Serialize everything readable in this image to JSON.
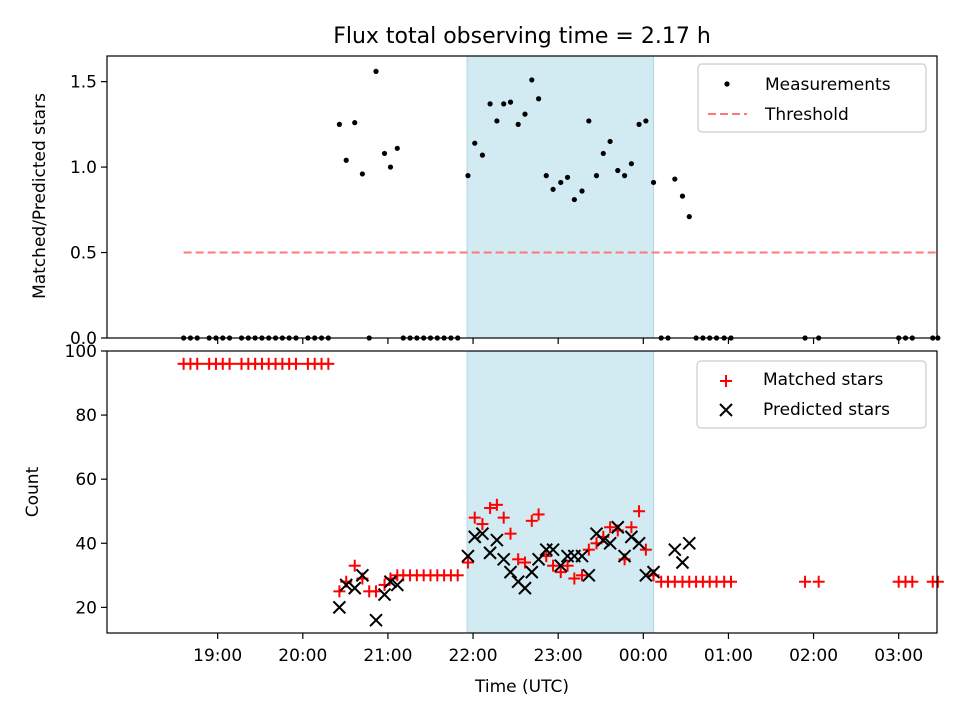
{
  "chart_data": {
    "title": "Flux total observing time = 2.17 h",
    "xlabel": "Time (UTC)",
    "x_tick_labels": [
      "19:00",
      "20:00",
      "21:00",
      "22:00",
      "23:00",
      "00:00",
      "01:00",
      "02:00",
      "03:00"
    ],
    "x_tick_hours": [
      19,
      20,
      21,
      22,
      23,
      24,
      25,
      26,
      27
    ],
    "x_range_hours": [
      17.7,
      27.45
    ],
    "highlight_span_hours": [
      21.93,
      24.12
    ],
    "highlight_color": "#add8e6",
    "panels": [
      {
        "id": "ratio",
        "type": "scatter",
        "ylabel": "Matched/Predicted stars",
        "ylim": [
          0,
          1.65
        ],
        "y_ticks": [
          0.0,
          0.5,
          1.0,
          1.5
        ],
        "y_tick_labels": [
          "0.0",
          "0.5",
          "1.0",
          "1.5"
        ],
        "legend": {
          "position": "top-right",
          "entries": [
            "Measurements",
            "Threshold"
          ]
        },
        "threshold": {
          "name": "Threshold",
          "value": 0.5,
          "x_from": 18.6,
          "x_to": 27.45,
          "color": "#ff7777",
          "style": "dashed"
        },
        "series": [
          {
            "name": "Measurements",
            "color": "#000000",
            "x": [
              18.6,
              18.68,
              18.76,
              18.9,
              18.98,
              19.06,
              19.14,
              19.28,
              19.36,
              19.44,
              19.52,
              19.6,
              19.68,
              19.76,
              19.84,
              19.92,
              20.06,
              20.14,
              20.22,
              20.3,
              20.43,
              20.51,
              20.61,
              20.7,
              20.78,
              20.86,
              20.96,
              21.03,
              21.11,
              21.18,
              21.26,
              21.34,
              21.42,
              21.5,
              21.58,
              21.66,
              21.74,
              21.82,
              21.94,
              22.02,
              22.11,
              22.2,
              22.28,
              22.36,
              22.44,
              22.53,
              22.61,
              22.69,
              22.77,
              22.86,
              22.94,
              23.03,
              23.11,
              23.19,
              23.28,
              23.36,
              23.45,
              23.53,
              23.61,
              23.7,
              23.78,
              23.86,
              23.95,
              24.03,
              24.12,
              24.21,
              24.29,
              24.37,
              24.46,
              24.54,
              24.62,
              24.7,
              24.78,
              24.86,
              24.95,
              25.03,
              25.9,
              26.06,
              27.0,
              27.08,
              27.16,
              27.4,
              27.46
            ],
            "y": [
              0,
              0,
              0,
              0,
              0,
              0,
              0,
              0,
              0,
              0,
              0,
              0,
              0,
              0,
              0,
              0,
              0,
              0,
              0,
              0,
              1.25,
              1.04,
              1.26,
              0.96,
              0,
              1.56,
              1.08,
              1.0,
              1.11,
              0,
              0,
              0,
              0,
              0,
              0,
              0,
              0,
              0,
              0.95,
              1.14,
              1.07,
              1.37,
              1.27,
              1.37,
              1.38,
              1.25,
              1.31,
              1.51,
              1.4,
              0.95,
              0.87,
              0.91,
              0.94,
              0.81,
              0.86,
              1.27,
              0.95,
              1.08,
              1.15,
              0.98,
              0.95,
              1.02,
              1.25,
              1.27,
              0.91,
              0,
              0,
              0.93,
              0.83,
              0.71,
              0,
              0,
              0,
              0,
              0,
              0,
              0,
              0,
              0,
              0,
              0,
              0,
              0
            ]
          }
        ]
      },
      {
        "id": "counts",
        "type": "scatter",
        "ylabel": "Count",
        "ylim": [
          12,
          100
        ],
        "y_ticks": [
          20,
          40,
          60,
          80,
          100
        ],
        "y_tick_labels": [
          "20",
          "40",
          "60",
          "80",
          "100"
        ],
        "legend": {
          "position": "top-right",
          "entries": [
            "Matched stars",
            "Predicted stars"
          ]
        },
        "series": [
          {
            "name": "Matched stars",
            "marker": "plus",
            "color": "#ff0000",
            "x": [
              18.6,
              18.68,
              18.76,
              18.9,
              18.98,
              19.06,
              19.14,
              19.28,
              19.36,
              19.44,
              19.52,
              19.6,
              19.68,
              19.76,
              19.84,
              19.92,
              20.06,
              20.14,
              20.22,
              20.3,
              20.43,
              20.51,
              20.61,
              20.7,
              20.78,
              20.86,
              20.96,
              21.03,
              21.11,
              21.18,
              21.26,
              21.34,
              21.42,
              21.5,
              21.58,
              21.66,
              21.74,
              21.82,
              21.94,
              22.02,
              22.11,
              22.2,
              22.28,
              22.36,
              22.44,
              22.53,
              22.61,
              22.69,
              22.77,
              22.86,
              22.94,
              23.03,
              23.11,
              23.19,
              23.28,
              23.36,
              23.45,
              23.53,
              23.61,
              23.7,
              23.78,
              23.86,
              23.95,
              24.03,
              24.12,
              24.21,
              24.29,
              24.37,
              24.46,
              24.54,
              24.62,
              24.7,
              24.78,
              24.86,
              24.95,
              25.03,
              25.9,
              26.06,
              27.0,
              27.08,
              27.16,
              27.4,
              27.46
            ],
            "y": [
              96,
              96,
              96,
              96,
              96,
              96,
              96,
              96,
              96,
              96,
              96,
              96,
              96,
              96,
              96,
              96,
              96,
              96,
              96,
              96,
              25,
              28,
              33,
              29,
              25,
              25,
              27,
              29,
              30,
              30,
              30,
              30,
              30,
              30,
              30,
              30,
              30,
              30,
              34,
              48,
              46,
              51,
              52,
              48,
              43,
              35,
              34,
              47,
              49,
              36,
              33,
              31,
              33,
              29,
              30,
              38,
              40,
              42,
              45,
              44,
              35,
              45,
              50,
              38,
              30,
              28,
              28,
              28,
              28,
              28,
              28,
              28,
              28,
              28,
              28,
              28,
              28,
              28,
              28,
              28,
              28,
              28,
              28
            ]
          },
          {
            "name": "Predicted stars",
            "marker": "x",
            "color": "#000000",
            "x": [
              20.43,
              20.51,
              20.61,
              20.7,
              20.86,
              20.96,
              21.03,
              21.11,
              21.94,
              22.02,
              22.11,
              22.2,
              22.28,
              22.36,
              22.44,
              22.53,
              22.61,
              22.69,
              22.77,
              22.86,
              22.94,
              23.03,
              23.11,
              23.19,
              23.28,
              23.36,
              23.45,
              23.53,
              23.61,
              23.7,
              23.78,
              23.86,
              23.95,
              24.03,
              24.12,
              24.37,
              24.46,
              24.54
            ],
            "y": [
              20,
              27,
              26,
              30,
              16,
              24,
              28,
              27,
              36,
              42,
              43,
              37,
              41,
              35,
              31,
              28,
              26,
              31,
              35,
              38,
              38,
              33,
              36,
              36,
              36,
              30,
              43,
              41,
              40,
              45,
              36,
              42,
              40,
              30,
              31,
              38,
              34,
              40
            ]
          }
        ]
      }
    ]
  }
}
